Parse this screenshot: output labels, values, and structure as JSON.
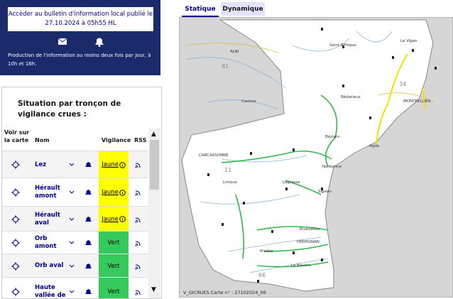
{
  "banner": {
    "link": "Accéder au bulletin d'information local publié le 27.10.2024 à 05h55 HL",
    "note": "Production de l'information au moins deux fois par jour, à 10h et 16h."
  },
  "table": {
    "title": "Situation par tronçon de vigilance crues :",
    "headers": [
      "Voir sur la carte",
      "Nom",
      "Vigilance",
      "RSS"
    ],
    "rows": [
      {
        "name": "Lez",
        "level": "Jaune"
      },
      {
        "name": "Hérault amont",
        "level": "Jaune"
      },
      {
        "name": "Hérault aval",
        "level": "Jaune"
      },
      {
        "name": "Orb amont",
        "level": "Vert"
      },
      {
        "name": "Orb aval",
        "level": "Vert"
      },
      {
        "name": "Haute vallée de",
        "level": "Vert"
      }
    ]
  },
  "map": {
    "tabs": [
      "Statique",
      "Dynamique"
    ],
    "places": [
      "ALBI",
      "Saint-Affrique",
      "Le Vigan",
      "Castres",
      "Bédarieux",
      "MONTPELLIER",
      "Béziers",
      "Agde",
      "CARCASSONNE",
      "Narbonne",
      "Limoux",
      "Lagrasse",
      "Sigean",
      "Rivesaltes",
      "PERPIGNAN",
      "Prades",
      "Le Boulou"
    ],
    "departments": [
      "81",
      "34",
      "11",
      "66"
    ],
    "footer": "V_GICRUES   Carte n° : 27102024_06"
  }
}
